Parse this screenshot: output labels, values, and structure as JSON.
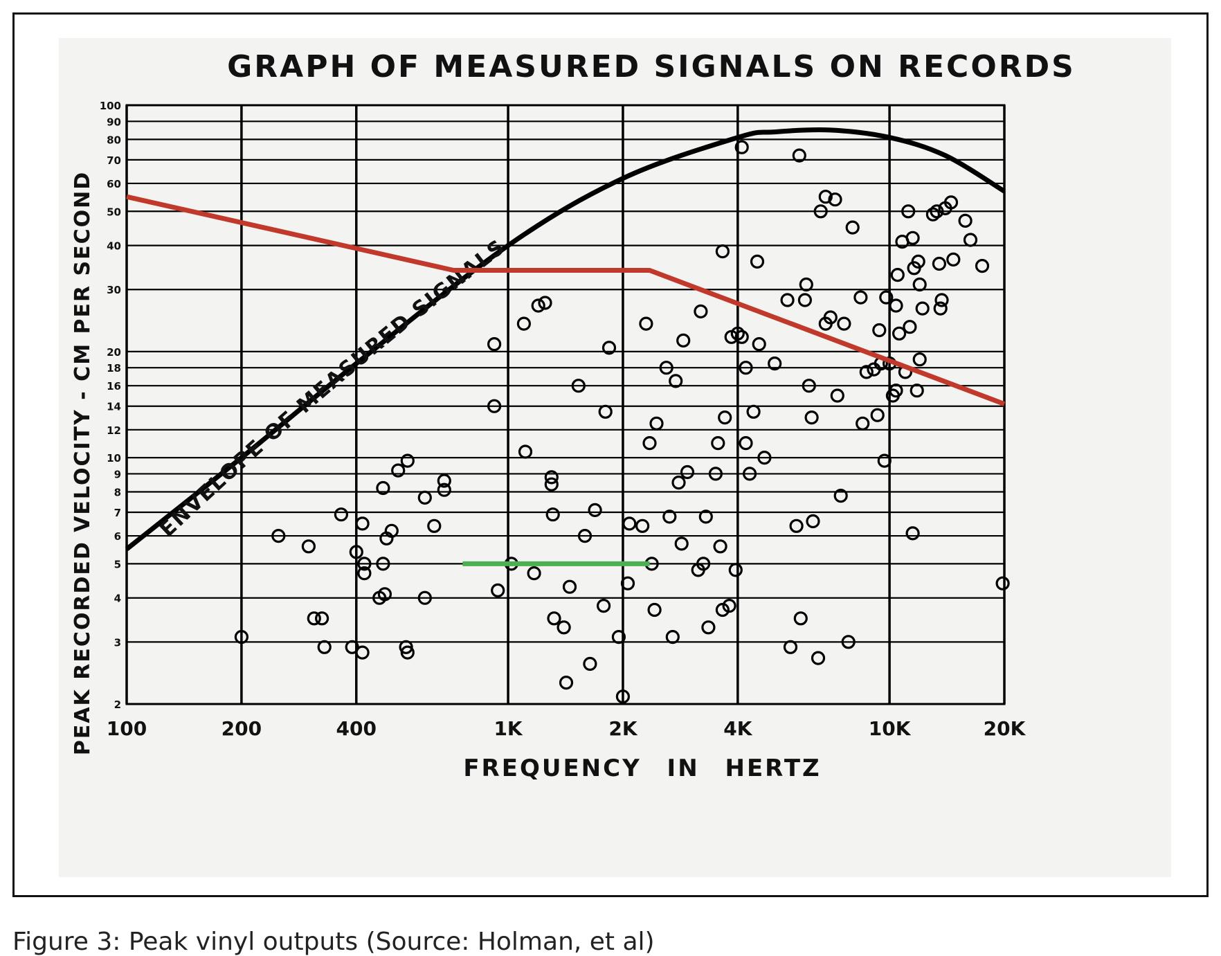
{
  "caption": "Figure 3: Peak vinyl outputs (Source: Holman, et al)",
  "chart_data": {
    "type": "scatter",
    "title": "GRAPH OF MEASURED SIGNALS ON RECORDS",
    "xlabel": "FREQUENCY IN HERTZ",
    "ylabel": "PEAK RECORDED VELOCITY - CM PER SECOND",
    "x_scale": "log",
    "y_scale": "log",
    "xlim": [
      100,
      20000
    ],
    "ylim": [
      2,
      100
    ],
    "grid": true,
    "x_ticks": [
      {
        "value": 100,
        "label": "100"
      },
      {
        "value": 200,
        "label": "200"
      },
      {
        "value": 400,
        "label": "400"
      },
      {
        "value": 1000,
        "label": "1K"
      },
      {
        "value": 2000,
        "label": "2K"
      },
      {
        "value": 4000,
        "label": "4K"
      },
      {
        "value": 10000,
        "label": "10K"
      },
      {
        "value": 20000,
        "label": "20K"
      }
    ],
    "y_ticks": [
      {
        "value": 2,
        "label": "2"
      },
      {
        "value": 3,
        "label": "3"
      },
      {
        "value": 4,
        "label": "4"
      },
      {
        "value": 5,
        "label": "5"
      },
      {
        "value": 6,
        "label": "6"
      },
      {
        "value": 7,
        "label": "7"
      },
      {
        "value": 8,
        "label": "8"
      },
      {
        "value": 9,
        "label": "9"
      },
      {
        "value": 10,
        "label": "10"
      },
      {
        "value": 12,
        "label": "12"
      },
      {
        "value": 14,
        "label": "14"
      },
      {
        "value": 16,
        "label": "16"
      },
      {
        "value": 18,
        "label": "18"
      },
      {
        "value": 20,
        "label": "20"
      },
      {
        "value": 30,
        "label": "30"
      },
      {
        "value": 40,
        "label": "40"
      },
      {
        "value": 50,
        "label": "50"
      },
      {
        "value": 60,
        "label": "60"
      },
      {
        "value": 70,
        "label": "70"
      },
      {
        "value": 80,
        "label": "80"
      },
      {
        "value": 90,
        "label": "90"
      },
      {
        "value": 100,
        "label": "100"
      }
    ],
    "envelope": {
      "label": "ENVELOPE OF MEASURED SIGNALS",
      "color": "#000000",
      "points": [
        [
          100,
          5.5
        ],
        [
          200,
          10
        ],
        [
          400,
          18.5
        ],
        [
          1000,
          40
        ],
        [
          2000,
          62
        ],
        [
          4000,
          81
        ],
        [
          5000,
          84
        ],
        [
          7000,
          85
        ],
        [
          10000,
          81
        ],
        [
          14000,
          72
        ],
        [
          20000,
          57
        ]
      ]
    },
    "red_line": {
      "color": "#c0392b",
      "points": [
        [
          100,
          55
        ],
        [
          720,
          34
        ],
        [
          2350,
          34
        ],
        [
          20000,
          14.2
        ]
      ]
    },
    "green_line": {
      "color": "#4caf50",
      "points": [
        [
          760,
          5
        ],
        [
          2350,
          5
        ]
      ]
    },
    "points": [
      [
        200,
        3.1
      ],
      [
        250,
        6
      ],
      [
        300,
        5.6
      ],
      [
        310,
        3.5
      ],
      [
        325,
        3.5
      ],
      [
        330,
        2.9
      ],
      [
        365,
        6.9
      ],
      [
        390,
        2.9
      ],
      [
        400,
        5.4
      ],
      [
        415,
        2.8
      ],
      [
        415,
        6.5
      ],
      [
        420,
        5
      ],
      [
        420,
        4.7
      ],
      [
        460,
        4
      ],
      [
        470,
        8.2
      ],
      [
        470,
        5
      ],
      [
        475,
        4.1
      ],
      [
        480,
        5.9
      ],
      [
        495,
        6.2
      ],
      [
        515,
        9.2
      ],
      [
        540,
        2.9
      ],
      [
        545,
        2.8
      ],
      [
        545,
        9.8
      ],
      [
        605,
        4
      ],
      [
        605,
        7.7
      ],
      [
        640,
        6.4
      ],
      [
        680,
        8.6
      ],
      [
        680,
        8.1
      ],
      [
        920,
        21
      ],
      [
        920,
        14
      ],
      [
        940,
        4.2
      ],
      [
        1020,
        5
      ],
      [
        1100,
        24
      ],
      [
        1110,
        10.4
      ],
      [
        1170,
        4.7
      ],
      [
        1200,
        27
      ],
      [
        1250,
        27.5
      ],
      [
        1300,
        8.8
      ],
      [
        1300,
        8.4
      ],
      [
        1310,
        6.9
      ],
      [
        1320,
        3.5
      ],
      [
        1400,
        3.3
      ],
      [
        1420,
        2.3
      ],
      [
        1450,
        4.3
      ],
      [
        1530,
        16
      ],
      [
        1590,
        6
      ],
      [
        1640,
        2.6
      ],
      [
        1690,
        7.1
      ],
      [
        1780,
        3.8
      ],
      [
        1800,
        13.5
      ],
      [
        1840,
        20.5
      ],
      [
        1950,
        3.1
      ],
      [
        2000,
        2.1
      ],
      [
        2060,
        4.4
      ],
      [
        2080,
        6.5
      ],
      [
        2250,
        6.4
      ],
      [
        2300,
        24
      ],
      [
        2350,
        11
      ],
      [
        2380,
        5
      ],
      [
        2420,
        3.7
      ],
      [
        2450,
        12.5
      ],
      [
        2600,
        18
      ],
      [
        2650,
        6.8
      ],
      [
        2700,
        3.1
      ],
      [
        2750,
        16.5
      ],
      [
        2800,
        8.5
      ],
      [
        2850,
        5.7
      ],
      [
        2880,
        21.5
      ],
      [
        2950,
        9.1
      ],
      [
        3150,
        4.8
      ],
      [
        3200,
        26
      ],
      [
        3250,
        5
      ],
      [
        3300,
        6.8
      ],
      [
        3350,
        3.3
      ],
      [
        3500,
        9
      ],
      [
        3550,
        11
      ],
      [
        3600,
        5.6
      ],
      [
        3650,
        3.7
      ],
      [
        3650,
        38.5
      ],
      [
        3700,
        13
      ],
      [
        3800,
        3.8
      ],
      [
        3850,
        22
      ],
      [
        3950,
        4.8
      ],
      [
        4000,
        22.5
      ],
      [
        4100,
        22
      ],
      [
        4100,
        76
      ],
      [
        4200,
        18
      ],
      [
        4200,
        11
      ],
      [
        4300,
        9
      ],
      [
        4400,
        13.5
      ],
      [
        4500,
        36
      ],
      [
        4550,
        21
      ],
      [
        4700,
        10
      ],
      [
        5000,
        18.5
      ],
      [
        5400,
        28
      ],
      [
        5500,
        2.9
      ],
      [
        5700,
        6.4
      ],
      [
        5800,
        72
      ],
      [
        5850,
        3.5
      ],
      [
        6000,
        28
      ],
      [
        6050,
        31
      ],
      [
        6150,
        16
      ],
      [
        6250,
        13
      ],
      [
        6300,
        6.6
      ],
      [
        6500,
        2.7
      ],
      [
        6600,
        50
      ],
      [
        6800,
        55
      ],
      [
        6800,
        24
      ],
      [
        7000,
        25
      ],
      [
        7200,
        54
      ],
      [
        7300,
        15
      ],
      [
        7450,
        7.8
      ],
      [
        7600,
        24
      ],
      [
        7800,
        3
      ],
      [
        8000,
        45
      ],
      [
        8400,
        28.5
      ],
      [
        8500,
        12.5
      ],
      [
        8700,
        17.5
      ],
      [
        9100,
        17.8
      ],
      [
        9300,
        13.2
      ],
      [
        9400,
        23
      ],
      [
        9500,
        18.5
      ],
      [
        9700,
        9.8
      ],
      [
        9800,
        28.5
      ],
      [
        10000,
        18.5
      ],
      [
        10200,
        15
      ],
      [
        10400,
        15.5
      ],
      [
        10400,
        27
      ],
      [
        10500,
        33
      ],
      [
        10600,
        22.5
      ],
      [
        10800,
        41
      ],
      [
        11000,
        17.5
      ],
      [
        11200,
        50
      ],
      [
        11300,
        23.5
      ],
      [
        11500,
        42
      ],
      [
        11500,
        6.1
      ],
      [
        11600,
        34.5
      ],
      [
        11800,
        15.5
      ],
      [
        11900,
        36
      ],
      [
        12000,
        19
      ],
      [
        12000,
        31
      ],
      [
        12200,
        26.5
      ],
      [
        13000,
        49
      ],
      [
        13300,
        50
      ],
      [
        13500,
        35.5
      ],
      [
        13600,
        26.5
      ],
      [
        13700,
        28
      ],
      [
        14000,
        51
      ],
      [
        14500,
        53
      ],
      [
        14700,
        36.5
      ],
      [
        15800,
        47
      ],
      [
        16300,
        41.5
      ],
      [
        17500,
        35
      ],
      [
        19800,
        4.4
      ]
    ]
  }
}
